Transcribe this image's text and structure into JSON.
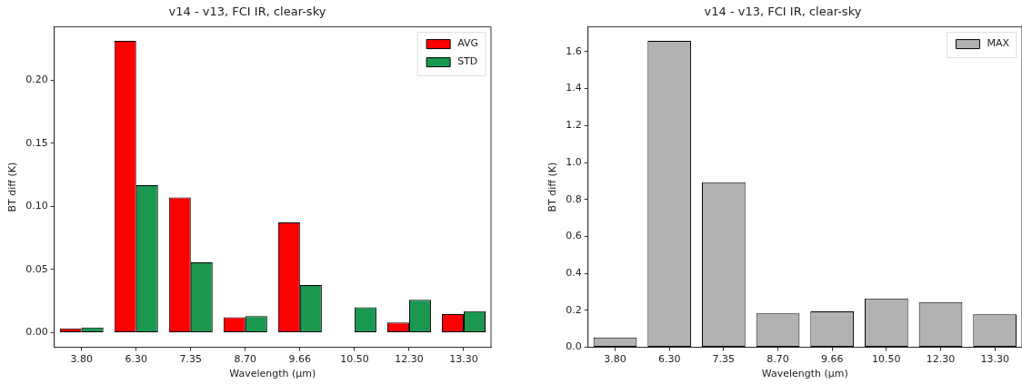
{
  "chart_data": [
    {
      "type": "bar",
      "title": "v14 - v13, FCI IR, clear-sky",
      "xlabel": "Wavelength (μm)",
      "ylabel": "BT diff (K)",
      "categories": [
        "3.80",
        "6.30",
        "7.35",
        "8.70",
        "9.66",
        "10.50",
        "12.30",
        "13.30"
      ],
      "series": [
        {
          "name": "AVG",
          "color": "#ff0000",
          "values": [
            0.0034,
            0.231,
            0.107,
            0.0121,
            0.0872,
            0,
            0.008,
            0.0147
          ]
        },
        {
          "name": "STD",
          "color": "#1b9850",
          "values": [
            0.0041,
            0.1167,
            0.0556,
            0.013,
            0.0377,
            0.02,
            0.026,
            0.0171
          ]
        }
      ],
      "ylim": [
        -0.0116,
        0.242
      ],
      "yticks": [
        {
          "value": 0,
          "label": "0.00"
        },
        {
          "value": 0.05,
          "label": "0.05"
        },
        {
          "value": 0.1,
          "label": "0.10"
        },
        {
          "value": 0.15,
          "label": "0.15"
        },
        {
          "value": 0.2,
          "label": "0.20"
        }
      ],
      "grid": false,
      "legend": "top right"
    },
    {
      "type": "bar",
      "title": "v14 - v13, FCI IR, clear-sky",
      "xlabel": "Wavelength (μm)",
      "ylabel": "BT diff (K)",
      "categories": [
        "3.80",
        "6.30",
        "7.35",
        "8.70",
        "9.66",
        "10.50",
        "12.30",
        "13.30"
      ],
      "series": [
        {
          "name": "MAX",
          "color": "#b2b2b2",
          "values": [
            0.053,
            1.658,
            0.893,
            0.184,
            0.194,
            0.265,
            0.245,
            0.179
          ]
        }
      ],
      "ylim": [
        0,
        1.734
      ],
      "yticks": [
        {
          "value": 0,
          "label": "0.0"
        },
        {
          "value": 0.2,
          "label": "0.2"
        },
        {
          "value": 0.4,
          "label": "0.4"
        },
        {
          "value": 0.6,
          "label": "0.6"
        },
        {
          "value": 0.8,
          "label": "0.8"
        },
        {
          "value": 1,
          "label": "1.0"
        },
        {
          "value": 1.2,
          "label": "1.2"
        },
        {
          "value": 1.4,
          "label": "1.4"
        },
        {
          "value": 1.6,
          "label": "1.6"
        }
      ],
      "grid": false,
      "legend": "top right"
    }
  ]
}
